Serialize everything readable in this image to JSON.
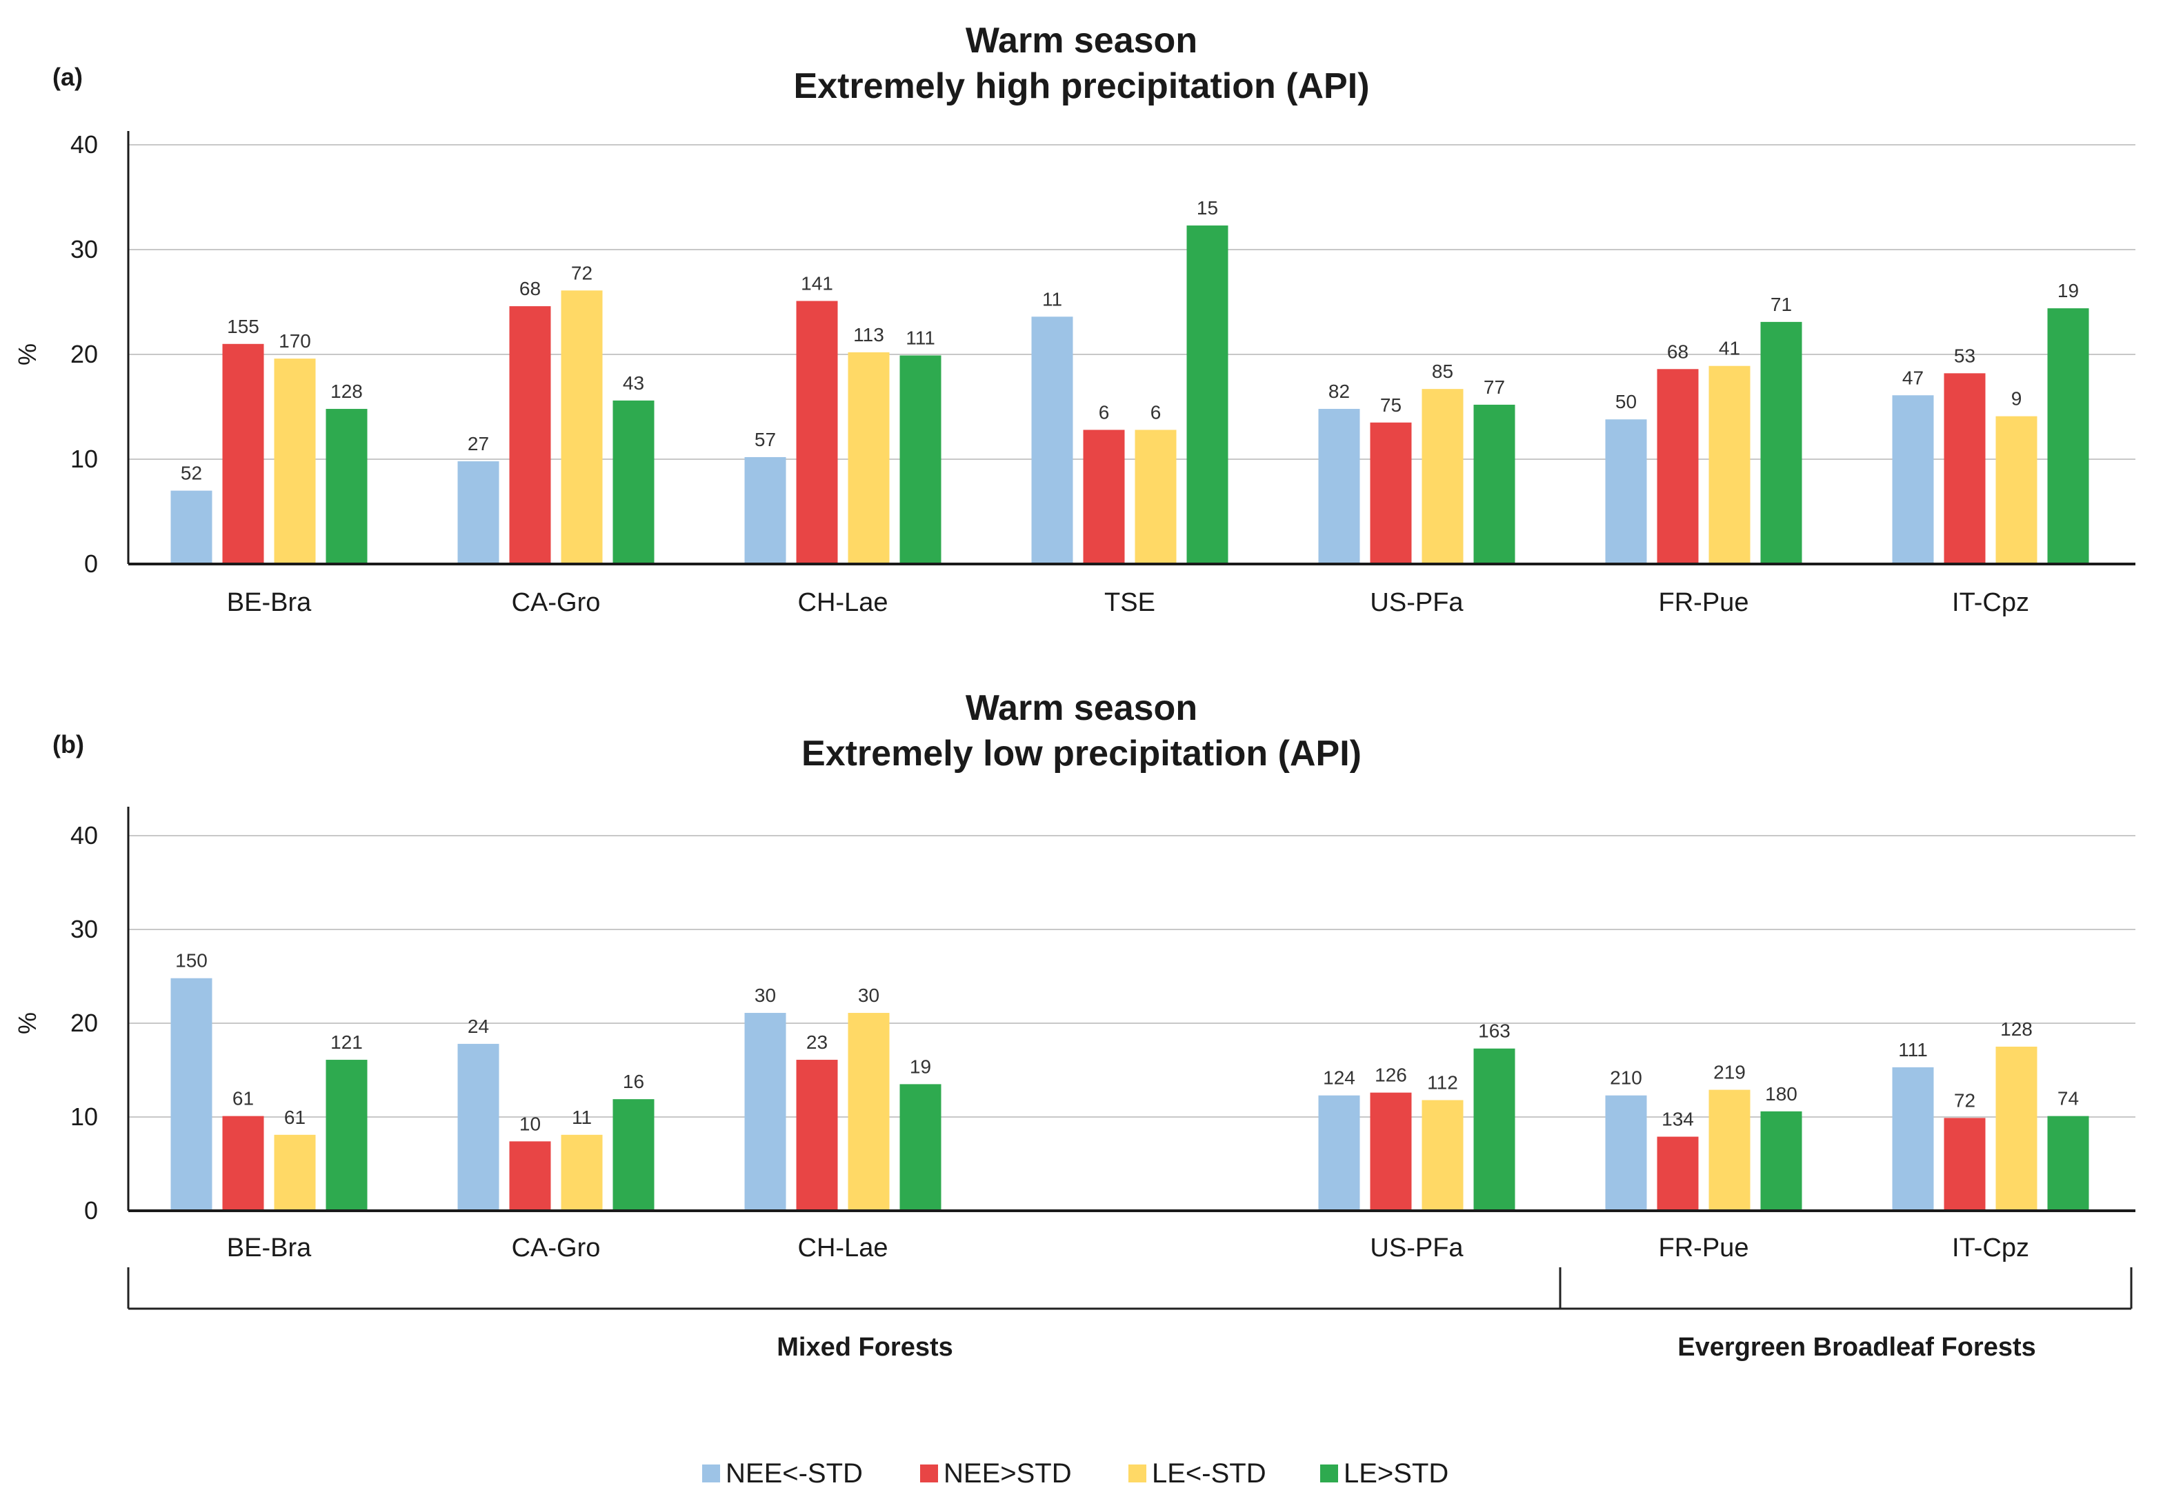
{
  "chart_data": [
    {
      "type": "bar",
      "panel": "(a)",
      "title": "Warm season",
      "subtitle": "Extremely high precipitation (API)",
      "ylabel": "%",
      "ylim": [
        0,
        40
      ],
      "yticks": [
        "0",
        "10",
        "20",
        "30",
        "40"
      ],
      "grid": true,
      "categories": [
        "BE-Bra",
        "CA-Gro",
        "CH-Lae",
        "TSE",
        "US-PFa",
        "FR-Pue",
        "IT-Cpz"
      ],
      "series": [
        {
          "name": "NEE<-STD",
          "color": "#9dc3e6",
          "values": [
            7,
            9.8,
            10.2,
            23.6,
            14.8,
            13.8,
            16.1
          ],
          "labels": [
            "52",
            "27",
            "57",
            "11",
            "82",
            "50",
            "47"
          ]
        },
        {
          "name": "NEE>STD",
          "color": "#e84545",
          "values": [
            21,
            24.6,
            25.1,
            12.8,
            13.5,
            18.6,
            18.2
          ],
          "labels": [
            "155",
            "68",
            "141",
            "6",
            "75",
            "68",
            "53"
          ]
        },
        {
          "name": "LE<-STD",
          "color": "#ffd966",
          "values": [
            19.6,
            26.1,
            20.2,
            12.8,
            16.7,
            18.9,
            14.1
          ],
          "labels": [
            "170",
            "72",
            "113",
            "6",
            "85",
            "41",
            "9"
          ]
        },
        {
          "name": "LE>STD",
          "color": "#2eaa4f",
          "values": [
            14.8,
            15.6,
            19.9,
            32.3,
            15.2,
            23.1,
            24.4
          ],
          "labels": [
            "128",
            "43",
            "111",
            "15",
            "77",
            "71",
            "19"
          ]
        }
      ]
    },
    {
      "type": "bar",
      "panel": "(b)",
      "title": "Warm season",
      "subtitle": "Extremely low precipitation (API)",
      "ylabel": "%",
      "ylim": [
        0,
        40
      ],
      "yticks": [
        "0",
        "10",
        "20",
        "30",
        "40"
      ],
      "grid": true,
      "categories": [
        "BE-Bra",
        "CA-Gro",
        "CH-Lae",
        "",
        "US-PFa",
        "FR-Pue",
        "IT-Cpz"
      ],
      "series": [
        {
          "name": "NEE<-STD",
          "color": "#9dc3e6",
          "values": [
            24.8,
            17.8,
            21.1,
            null,
            12.3,
            12.3,
            15.3
          ],
          "labels": [
            "150",
            "24",
            "30",
            "",
            "124",
            "210",
            "111"
          ]
        },
        {
          "name": "NEE>STD",
          "color": "#e84545",
          "values": [
            10.1,
            7.4,
            16.1,
            null,
            12.6,
            7.9,
            9.9
          ],
          "labels": [
            "61",
            "10",
            "23",
            "",
            "126",
            "134",
            "72"
          ]
        },
        {
          "name": "LE<-STD",
          "color": "#ffd966",
          "values": [
            8.1,
            8.1,
            21.1,
            null,
            11.8,
            12.9,
            17.5
          ],
          "labels": [
            "61",
            "11",
            "30",
            "",
            "112",
            "219",
            "128"
          ]
        },
        {
          "name": "LE>STD",
          "color": "#2eaa4f",
          "values": [
            16.1,
            11.9,
            13.5,
            null,
            17.3,
            10.6,
            10.1
          ],
          "labels": [
            "121",
            "16",
            "19",
            "",
            "163",
            "180",
            "74"
          ]
        }
      ]
    }
  ],
  "groups": [
    {
      "label": "Mixed Forests"
    },
    {
      "label": "Evergreen Broadleaf Forests"
    }
  ],
  "legend": [
    "NEE<-STD",
    "NEE>STD",
    "LE<-STD",
    "LE>STD"
  ]
}
